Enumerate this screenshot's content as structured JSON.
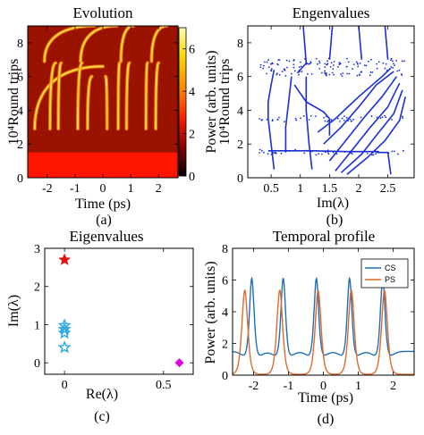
{
  "chart_data": [
    {
      "type": "heatmap",
      "title": "Evolution",
      "xlabel": "Time (ps)",
      "ylabel": "10⁴Round trips",
      "caption": "(a)",
      "xlim": [
        -2.7,
        2.7
      ],
      "ylim": [
        0,
        9
      ],
      "xticks": [
        "-2",
        "-1",
        "0",
        "1",
        "2"
      ],
      "yticks": [
        "0",
        "2",
        "4",
        "6",
        "8"
      ],
      "colorbar": {
        "label": "Power (arb. units)",
        "range": [
          0,
          7
        ],
        "ticks": [
          "0",
          "2",
          "4",
          "6"
        ],
        "colors": [
          "#000000",
          "#8b0000",
          "#ff2200",
          "#ff8c00",
          "#ffd400",
          "#ffffb0"
        ]
      },
      "background_color": "#9a1200",
      "bottom_band": {
        "y_range": [
          0,
          1.5
        ],
        "color": "#ff1500"
      },
      "traces": [
        {
          "segments": [
            [
              -2.45,
              0,
              2.9,
              6.6
            ],
            [
              -2.1,
              -0.3,
              6.9,
              9
            ]
          ]
        },
        {
          "segments": [
            [
              -1.9,
              -1.7,
              2.9,
              6.8
            ],
            [
              -0.8,
              0.5,
              6.9,
              9
            ]
          ]
        },
        {
          "segments": [
            [
              -1.6,
              -1.5,
              2.9,
              6.8
            ],
            [
              0.65,
              1.1,
              6.9,
              9
            ]
          ]
        },
        {
          "segments": [
            [
              -0.9,
              -0.75,
              2.9,
              6.8
            ],
            [
              1.75,
              2.3,
              6.9,
              9
            ]
          ]
        },
        {
          "segments": [
            [
              -0.55,
              -0.4,
              2.9,
              6.0
            ]
          ]
        },
        {
          "segments": [
            [
              0.15,
              0.1,
              2.9,
              6.0
            ]
          ]
        },
        {
          "segments": [
            [
              0.55,
              0.6,
              2.9,
              6.8
            ]
          ]
        },
        {
          "segments": [
            [
              0.85,
              0.95,
              2.9,
              6.8
            ]
          ]
        },
        {
          "segments": [
            [
              1.55,
              1.6,
              2.9,
              6.8
            ]
          ]
        },
        {
          "segments": [
            [
              1.9,
              2.0,
              2.9,
              6.8
            ]
          ]
        }
      ]
    },
    {
      "type": "scatter",
      "title": "Engenvalues",
      "xlabel": "Im(λ)",
      "ylabel": "10⁴Round trips",
      "caption": "(b)",
      "xlim": [
        0.1,
        2.95
      ],
      "ylim": [
        0,
        9
      ],
      "xticks": [
        "0.5",
        "1",
        "1.5",
        "2",
        "2.5"
      ],
      "yticks": [
        "0",
        "2",
        "4",
        "6",
        "8"
      ],
      "color": "#1a2fd6",
      "branches": [
        {
          "points": [
            [
              1.05,
              9
            ],
            [
              1.1,
              6.8
            ],
            [
              0.95,
              6.2
            ]
          ]
        },
        {
          "points": [
            [
              1.55,
              9
            ],
            [
              1.5,
              7.0
            ]
          ]
        },
        {
          "points": [
            [
              2.0,
              9
            ],
            [
              2.05,
              7.0
            ]
          ]
        },
        {
          "points": [
            [
              2.45,
              9
            ],
            [
              2.5,
              7.0
            ]
          ]
        },
        {
          "points": [
            [
              0.55,
              6.4
            ],
            [
              0.5,
              5.5
            ],
            [
              0.45,
              4.5
            ],
            [
              0.45,
              3.5
            ],
            [
              0.5,
              2.0
            ],
            [
              0.55,
              0.5
            ]
          ]
        },
        {
          "points": [
            [
              0.85,
              6.0
            ],
            [
              0.8,
              4.5
            ],
            [
              0.75,
              3.0
            ],
            [
              0.75,
              1.5
            ]
          ]
        },
        {
          "points": [
            [
              1.1,
              6.0
            ],
            [
              1.1,
              4.0
            ],
            [
              1.15,
              2.0
            ],
            [
              1.2,
              0.5
            ]
          ]
        },
        {
          "points": [
            [
              0.9,
              5.5
            ],
            [
              1.1,
              4.5
            ],
            [
              1.4,
              3.9
            ],
            [
              1.5,
              3.5
            ],
            [
              1.5,
              2.5
            ]
          ]
        },
        {
          "points": [
            [
              1.3,
              2.7
            ],
            [
              1.6,
              3.5
            ],
            [
              2.0,
              4.8
            ],
            [
              2.4,
              6.0
            ],
            [
              2.55,
              6.5
            ]
          ]
        },
        {
          "points": [
            [
              1.4,
              2.0
            ],
            [
              1.7,
              3.0
            ],
            [
              2.0,
              4.2
            ],
            [
              2.3,
              5.5
            ],
            [
              2.6,
              6.3
            ]
          ]
        },
        {
          "points": [
            [
              1.5,
              1.0
            ],
            [
              1.8,
              2.3
            ],
            [
              2.1,
              3.6
            ],
            [
              2.4,
              4.8
            ],
            [
              2.65,
              6.0
            ]
          ]
        },
        {
          "points": [
            [
              1.6,
              0.4
            ],
            [
              1.9,
              1.7
            ],
            [
              2.2,
              3.0
            ],
            [
              2.5,
              4.2
            ],
            [
              2.7,
              5.6
            ]
          ]
        },
        {
          "points": [
            [
              1.7,
              0.3
            ],
            [
              2.05,
              1.4
            ],
            [
              2.3,
              2.5
            ],
            [
              2.6,
              3.8
            ],
            [
              2.75,
              5.2
            ]
          ]
        },
        {
          "points": [
            [
              1.8,
              0.2
            ],
            [
              2.15,
              1.2
            ],
            [
              2.45,
              2.2
            ],
            [
              2.7,
              3.4
            ],
            [
              2.8,
              4.8
            ]
          ]
        },
        {
          "points": [
            [
              0.45,
              1.6
            ],
            [
              1.2,
              1.6
            ],
            [
              1.8,
              1.55
            ],
            [
              2.35,
              1.55
            ]
          ]
        },
        {
          "points": [
            [
              2.3,
              1.5
            ],
            [
              2.5,
              1.5
            ],
            [
              2.55,
              0.2
            ]
          ]
        }
      ],
      "scatter_bands": [
        6.2,
        6.6,
        6.9,
        3.5,
        1.5
      ]
    },
    {
      "type": "scatter",
      "title": "Eigenvalues",
      "xlabel": "Re(λ)",
      "ylabel": "Im(λ)",
      "caption": "(c)",
      "xlim": [
        -0.1,
        0.65
      ],
      "ylim": [
        -0.3,
        3.0
      ],
      "xticks": [
        "0",
        "0.5"
      ],
      "yticks": [
        "0",
        "1",
        "2",
        "3"
      ],
      "series": [
        {
          "marker": "filled-star",
          "color": "#e01010",
          "points": [
            [
              0.0,
              2.7
            ]
          ]
        },
        {
          "marker": "open-star",
          "color": "#2aa8e0",
          "points": [
            [
              0.0,
              0.98
            ],
            [
              0.0,
              0.88
            ],
            [
              0.0,
              0.78
            ],
            [
              0.0,
              0.4
            ]
          ]
        },
        {
          "marker": "diamond",
          "color": "#e000e0",
          "points": [
            [
              0.58,
              0.0
            ]
          ]
        }
      ]
    },
    {
      "type": "line",
      "title": "Temporal profile",
      "xlabel": "Time (ps)",
      "ylabel": "Power (arb. units)",
      "caption": "(d)",
      "xlim": [
        -2.6,
        2.6
      ],
      "ylim": [
        0,
        8
      ],
      "xticks": [
        "-2",
        "-1",
        "0",
        "1",
        "2"
      ],
      "yticks": [
        "0",
        "2",
        "4",
        "6",
        "8"
      ],
      "legend_position": "top-right",
      "series": [
        {
          "name": "CS",
          "color": "#1f6fb8",
          "peaks": [
            -2.05,
            -1.15,
            -0.2,
            0.75,
            1.7
          ],
          "amplitude": 5.3,
          "baseline": 1.5,
          "width": 0.09
        },
        {
          "name": "PS",
          "color": "#e06a2c",
          "peaks": [
            -2.25,
            -1.25,
            -0.15,
            0.8,
            1.75
          ],
          "amplitude": 5.3,
          "baseline": 0.05,
          "width": 0.11
        }
      ]
    }
  ]
}
